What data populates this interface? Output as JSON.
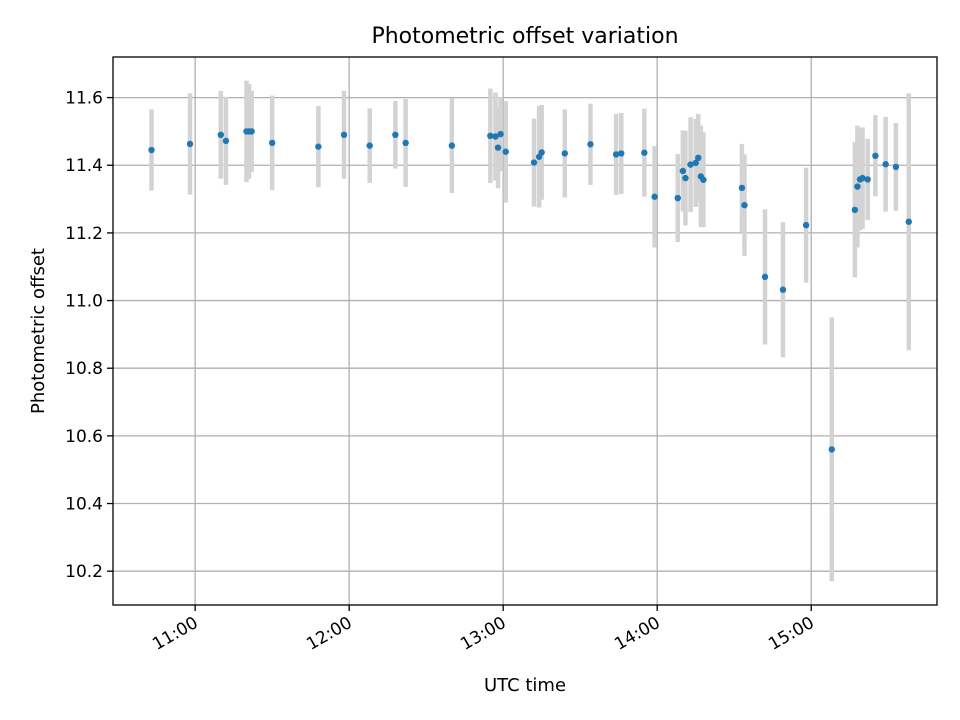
{
  "chart_data": {
    "type": "scatter",
    "title": "Photometric offset variation",
    "xlabel": "UTC time",
    "ylabel": "Photometric offset",
    "xlim": [
      "10:28",
      "15:49"
    ],
    "ylim": [
      10.1,
      11.72
    ],
    "grid": true,
    "x_tick_labels": [
      "11:00",
      "12:00",
      "13:00",
      "14:00",
      "15:00"
    ],
    "y_tick_labels": [
      "10.2",
      "10.4",
      "10.6",
      "10.8",
      "11.0",
      "11.2",
      "11.4",
      "11.6"
    ],
    "colors": {
      "point": "#1f77b4",
      "errorbar": "#d3d3d3"
    },
    "series": [
      {
        "x": [
          "10:43",
          "10:58",
          "11:10",
          "11:12",
          "11:20",
          "11:21",
          "11:22",
          "11:30",
          "11:48",
          "11:58",
          "12:08",
          "12:18",
          "12:22",
          "12:40",
          "12:55",
          "12:57",
          "12:58",
          "12:59",
          "13:01",
          "13:12",
          "13:14",
          "13:15",
          "13:24",
          "13:34",
          "13:44",
          "13:46",
          "13:55",
          "13:59",
          "14:08",
          "14:10",
          "14:11",
          "14:13",
          "14:15",
          "14:16",
          "14:17",
          "14:18",
          "14:33",
          "14:34",
          "14:42",
          "14:49",
          "14:58",
          "15:08",
          "15:17",
          "15:18",
          "15:19",
          "15:20",
          "15:22",
          "15:25",
          "15:29",
          "15:33",
          "15:38"
        ],
        "y": [
          11.445,
          11.463,
          11.49,
          11.472,
          11.5,
          11.5,
          11.5,
          11.466,
          11.455,
          11.49,
          11.458,
          11.49,
          11.466,
          11.458,
          11.487,
          11.485,
          11.452,
          11.492,
          11.44,
          11.408,
          11.425,
          11.438,
          11.435,
          11.462,
          11.432,
          11.435,
          11.437,
          11.307,
          11.303,
          11.383,
          11.362,
          11.402,
          11.407,
          11.422,
          11.367,
          11.357,
          11.333,
          11.282,
          11.07,
          11.032,
          11.223,
          10.56,
          11.268,
          11.337,
          11.358,
          11.362,
          11.358,
          11.428,
          11.403,
          11.395,
          11.233
        ],
        "yerr": [
          0.12,
          0.15,
          0.13,
          0.13,
          0.15,
          0.14,
          0.12,
          0.14,
          0.12,
          0.13,
          0.11,
          0.1,
          0.13,
          0.14,
          0.14,
          0.13,
          0.12,
          0.11,
          0.15,
          0.13,
          0.15,
          0.14,
          0.13,
          0.12,
          0.12,
          0.12,
          0.13,
          0.15,
          0.13,
          0.12,
          0.14,
          0.14,
          0.13,
          0.13,
          0.15,
          0.14,
          0.13,
          0.15,
          0.2,
          0.2,
          0.17,
          0.39,
          0.2,
          0.18,
          0.15,
          0.15,
          0.12,
          0.12,
          0.14,
          0.13,
          0.38
        ]
      }
    ]
  }
}
